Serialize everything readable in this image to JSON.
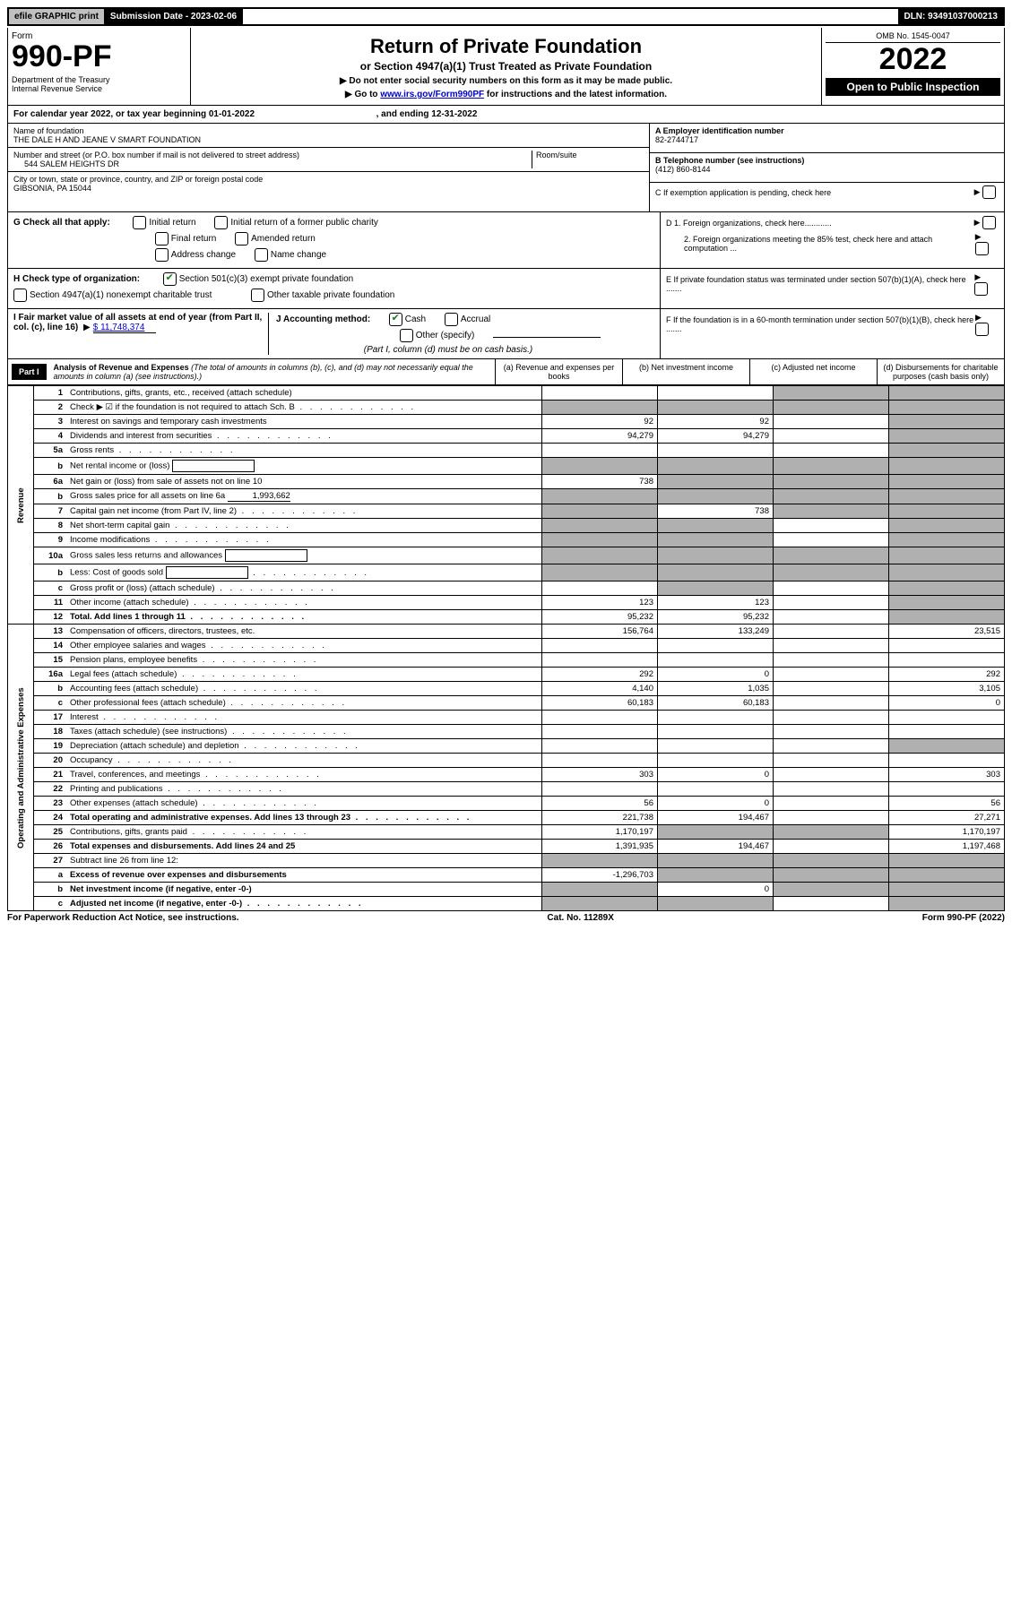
{
  "top": {
    "efile": "efile GRAPHIC print",
    "submission": "Submission Date - 2023-02-06",
    "dln": "DLN: 93491037000213"
  },
  "header": {
    "form_label": "Form",
    "form_number": "990-PF",
    "dept": "Department of the Treasury\nInternal Revenue Service",
    "title": "Return of Private Foundation",
    "subtitle": "or Section 4947(a)(1) Trust Treated as Private Foundation",
    "instr1": "▶ Do not enter social security numbers on this form as it may be made public.",
    "instr2_pre": "▶ Go to ",
    "instr2_link": "www.irs.gov/Form990PF",
    "instr2_post": " for instructions and the latest information.",
    "omb": "OMB No. 1545-0047",
    "year": "2022",
    "open": "Open to Public Inspection"
  },
  "calendar": {
    "text_a": "For calendar year 2022, or tax year beginning 01-01-2022",
    "text_b": ", and ending 12-31-2022"
  },
  "info": {
    "name_label": "Name of foundation",
    "name": "THE DALE H AND JEANE V SMART FOUNDATION",
    "addr_label": "Number and street (or P.O. box number if mail is not delivered to street address)",
    "addr": "544 SALEM HEIGHTS DR",
    "room_label": "Room/suite",
    "city_label": "City or town, state or province, country, and ZIP or foreign postal code",
    "city": "GIBSONIA, PA  15044",
    "a_label": "A Employer identification number",
    "a_val": "82-2744717",
    "b_label": "B Telephone number (see instructions)",
    "b_val": "(412) 860-8144",
    "c_label": "C If exemption application is pending, check here"
  },
  "g": {
    "label": "G Check all that apply:",
    "opts": [
      "Initial return",
      "Initial return of a former public charity",
      "Final return",
      "Amended return",
      "Address change",
      "Name change"
    ]
  },
  "h": {
    "label": "H Check type of organization:",
    "opt1": "Section 501(c)(3) exempt private foundation",
    "opt2": "Section 4947(a)(1) nonexempt charitable trust",
    "opt3": "Other taxable private foundation"
  },
  "i": {
    "label": "I Fair market value of all assets at end of year (from Part II, col. (c), line 16)",
    "val": "$  11,748,374"
  },
  "j": {
    "label": "J Accounting method:",
    "cash": "Cash",
    "accrual": "Accrual",
    "other": "Other (specify)",
    "note": "(Part I, column (d) must be on cash basis.)"
  },
  "d": {
    "l1": "D 1. Foreign organizations, check here............",
    "l2": "2. Foreign organizations meeting the 85% test, check here and attach computation ..."
  },
  "e": "E If private foundation status was terminated under section 507(b)(1)(A), check here .......",
  "f": "F If the foundation is in a 60-month termination under section 507(b)(1)(B), check here .......",
  "part1": {
    "label": "Part I",
    "title": "Analysis of Revenue and Expenses",
    "note": "(The total of amounts in columns (b), (c), and (d) may not necessarily equal the amounts in column (a) (see instructions).)",
    "col_a": "(a) Revenue and expenses per books",
    "col_b": "(b) Net investment income",
    "col_c": "(c) Adjusted net income",
    "col_d": "(d) Disbursements for charitable purposes (cash basis only)"
  },
  "side": {
    "revenue": "Revenue",
    "expenses": "Operating and Administrative Expenses"
  },
  "rows": [
    {
      "n": "1",
      "l": "Contributions, gifts, grants, etc., received (attach schedule)",
      "a": "",
      "b": "",
      "c": "",
      "d": "",
      "shade_cd": true
    },
    {
      "n": "2",
      "l": "Check ▶ ☑ if the foundation is not required to attach Sch. B",
      "dots": true,
      "a": "",
      "b": "",
      "c": "",
      "d": "",
      "shade_all": true
    },
    {
      "n": "3",
      "l": "Interest on savings and temporary cash investments",
      "a": "92",
      "b": "92",
      "c": "",
      "d": "",
      "shade_d": true
    },
    {
      "n": "4",
      "l": "Dividends and interest from securities",
      "dots": true,
      "a": "94,279",
      "b": "94,279",
      "c": "",
      "d": "",
      "shade_d": true
    },
    {
      "n": "5a",
      "l": "Gross rents",
      "dots": true,
      "a": "",
      "b": "",
      "c": "",
      "d": "",
      "shade_d": true
    },
    {
      "n": "b",
      "l": "Net rental income or (loss)",
      "box": true,
      "a": "",
      "b": "",
      "c": "",
      "d": "",
      "shade_abcd": true
    },
    {
      "n": "6a",
      "l": "Net gain or (loss) from sale of assets not on line 10",
      "a": "738",
      "b": "",
      "c": "",
      "d": "",
      "shade_bcd": true
    },
    {
      "n": "b",
      "l": "Gross sales price for all assets on line 6a",
      "inline_val": "1,993,662",
      "a": "",
      "b": "",
      "c": "",
      "d": "",
      "shade_abcd": true
    },
    {
      "n": "7",
      "l": "Capital gain net income (from Part IV, line 2)",
      "dots": true,
      "a": "",
      "b": "738",
      "c": "",
      "d": "",
      "shade_a": true,
      "shade_cd": true
    },
    {
      "n": "8",
      "l": "Net short-term capital gain",
      "dots": true,
      "a": "",
      "b": "",
      "c": "",
      "d": "",
      "shade_ab": true,
      "shade_d": true
    },
    {
      "n": "9",
      "l": "Income modifications",
      "dots": true,
      "a": "",
      "b": "",
      "c": "",
      "d": "",
      "shade_ab": true,
      "shade_d": true
    },
    {
      "n": "10a",
      "l": "Gross sales less returns and allowances",
      "box": true,
      "a": "",
      "b": "",
      "c": "",
      "d": "",
      "shade_abcd": true
    },
    {
      "n": "b",
      "l": "Less: Cost of goods sold",
      "dots": true,
      "box": true,
      "a": "",
      "b": "",
      "c": "",
      "d": "",
      "shade_abcd": true
    },
    {
      "n": "c",
      "l": "Gross profit or (loss) (attach schedule)",
      "dots": true,
      "a": "",
      "b": "",
      "c": "",
      "d": "",
      "shade_b": true,
      "shade_d": true
    },
    {
      "n": "11",
      "l": "Other income (attach schedule)",
      "dots": true,
      "a": "123",
      "b": "123",
      "c": "",
      "d": "",
      "shade_d": true
    },
    {
      "n": "12",
      "l": "Total. Add lines 1 through 11",
      "dots": true,
      "bold": true,
      "a": "95,232",
      "b": "95,232",
      "c": "",
      "d": "",
      "shade_d": true
    },
    {
      "n": "13",
      "l": "Compensation of officers, directors, trustees, etc.",
      "a": "156,764",
      "b": "133,249",
      "c": "",
      "d": "23,515"
    },
    {
      "n": "14",
      "l": "Other employee salaries and wages",
      "dots": true,
      "a": "",
      "b": "",
      "c": "",
      "d": ""
    },
    {
      "n": "15",
      "l": "Pension plans, employee benefits",
      "dots": true,
      "a": "",
      "b": "",
      "c": "",
      "d": ""
    },
    {
      "n": "16a",
      "l": "Legal fees (attach schedule)",
      "dots": true,
      "a": "292",
      "b": "0",
      "c": "",
      "d": "292"
    },
    {
      "n": "b",
      "l": "Accounting fees (attach schedule)",
      "dots": true,
      "a": "4,140",
      "b": "1,035",
      "c": "",
      "d": "3,105"
    },
    {
      "n": "c",
      "l": "Other professional fees (attach schedule)",
      "dots": true,
      "a": "60,183",
      "b": "60,183",
      "c": "",
      "d": "0"
    },
    {
      "n": "17",
      "l": "Interest",
      "dots": true,
      "a": "",
      "b": "",
      "c": "",
      "d": ""
    },
    {
      "n": "18",
      "l": "Taxes (attach schedule) (see instructions)",
      "dots": true,
      "a": "",
      "b": "",
      "c": "",
      "d": ""
    },
    {
      "n": "19",
      "l": "Depreciation (attach schedule) and depletion",
      "dots": true,
      "a": "",
      "b": "",
      "c": "",
      "d": "",
      "shade_d": true
    },
    {
      "n": "20",
      "l": "Occupancy",
      "dots": true,
      "a": "",
      "b": "",
      "c": "",
      "d": ""
    },
    {
      "n": "21",
      "l": "Travel, conferences, and meetings",
      "dots": true,
      "a": "303",
      "b": "0",
      "c": "",
      "d": "303"
    },
    {
      "n": "22",
      "l": "Printing and publications",
      "dots": true,
      "a": "",
      "b": "",
      "c": "",
      "d": ""
    },
    {
      "n": "23",
      "l": "Other expenses (attach schedule)",
      "dots": true,
      "a": "56",
      "b": "0",
      "c": "",
      "d": "56"
    },
    {
      "n": "24",
      "l": "Total operating and administrative expenses. Add lines 13 through 23",
      "dots": true,
      "bold": true,
      "a": "221,738",
      "b": "194,467",
      "c": "",
      "d": "27,271"
    },
    {
      "n": "25",
      "l": "Contributions, gifts, grants paid",
      "dots": true,
      "a": "1,170,197",
      "b": "",
      "c": "",
      "d": "1,170,197",
      "shade_bc": true
    },
    {
      "n": "26",
      "l": "Total expenses and disbursements. Add lines 24 and 25",
      "bold": true,
      "a": "1,391,935",
      "b": "194,467",
      "c": "",
      "d": "1,197,468"
    },
    {
      "n": "27",
      "l": "Subtract line 26 from line 12:",
      "a": "",
      "b": "",
      "c": "",
      "d": "",
      "shade_abcd": true
    },
    {
      "n": "a",
      "l": "Excess of revenue over expenses and disbursements",
      "bold": true,
      "a": "-1,296,703",
      "b": "",
      "c": "",
      "d": "",
      "shade_bcd": true
    },
    {
      "n": "b",
      "l": "Net investment income (if negative, enter -0-)",
      "bold": true,
      "a": "",
      "b": "0",
      "c": "",
      "d": "",
      "shade_a": true,
      "shade_cd": true
    },
    {
      "n": "c",
      "l": "Adjusted net income (if negative, enter -0-)",
      "dots": true,
      "bold": true,
      "a": "",
      "b": "",
      "c": "",
      "d": "",
      "shade_ab": true,
      "shade_d": true
    }
  ],
  "footer": {
    "left": "For Paperwork Reduction Act Notice, see instructions.",
    "mid": "Cat. No. 11289X",
    "right": "Form 990-PF (2022)"
  }
}
